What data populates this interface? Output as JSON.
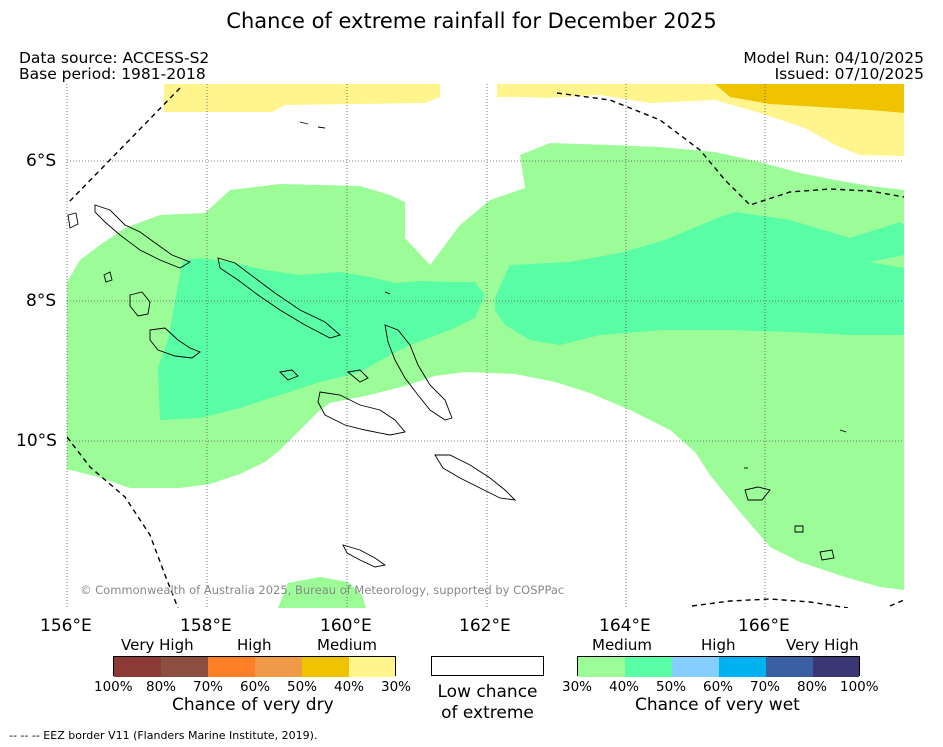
{
  "title": "Chance of extreme rainfall for December 2025",
  "meta": {
    "data_source": "Data source: ACCESS-S2",
    "base_period": "Base period: 1981-2018",
    "model_run": "Model Run: 04/10/2025",
    "issued": "Issued: 07/10/2025"
  },
  "map": {
    "lat_labels": [
      "6°S",
      "8°S",
      "10°S"
    ],
    "lon_labels": [
      "156°E",
      "158°E",
      "160°E",
      "162°E",
      "164°E",
      "166°E"
    ],
    "copyright": "© Commonwealth of Australia 2025, Bureau of Meteorology, supported by COSPPac"
  },
  "legend": {
    "dry": {
      "categories": [
        "Very High",
        "High",
        "Medium"
      ],
      "colors": [
        "#8b3a35",
        "#8c4e3e",
        "#ff7f27",
        "#ef9a48",
        "#efc300",
        "#fff58c"
      ],
      "ticks": [
        "100%",
        "80%",
        "70%",
        "60%",
        "50%",
        "40%",
        "30%"
      ],
      "caption": "Chance of very dry"
    },
    "low": {
      "line1": "Low chance",
      "line2": "of extreme",
      "color": "#ffffff"
    },
    "wet": {
      "categories": [
        "Medium",
        "High",
        "Very High"
      ],
      "colors": [
        "#9cfc98",
        "#58fda6",
        "#85cefe",
        "#00b2f0",
        "#3a5fa2",
        "#3b3674"
      ],
      "ticks": [
        "30%",
        "40%",
        "50%",
        "60%",
        "70%",
        "80%",
        "100%"
      ],
      "caption": "Chance of very wet"
    }
  },
  "eez_note": "--  --  -- EEZ border V11 (Flanders Marine Institute, 2019)."
}
